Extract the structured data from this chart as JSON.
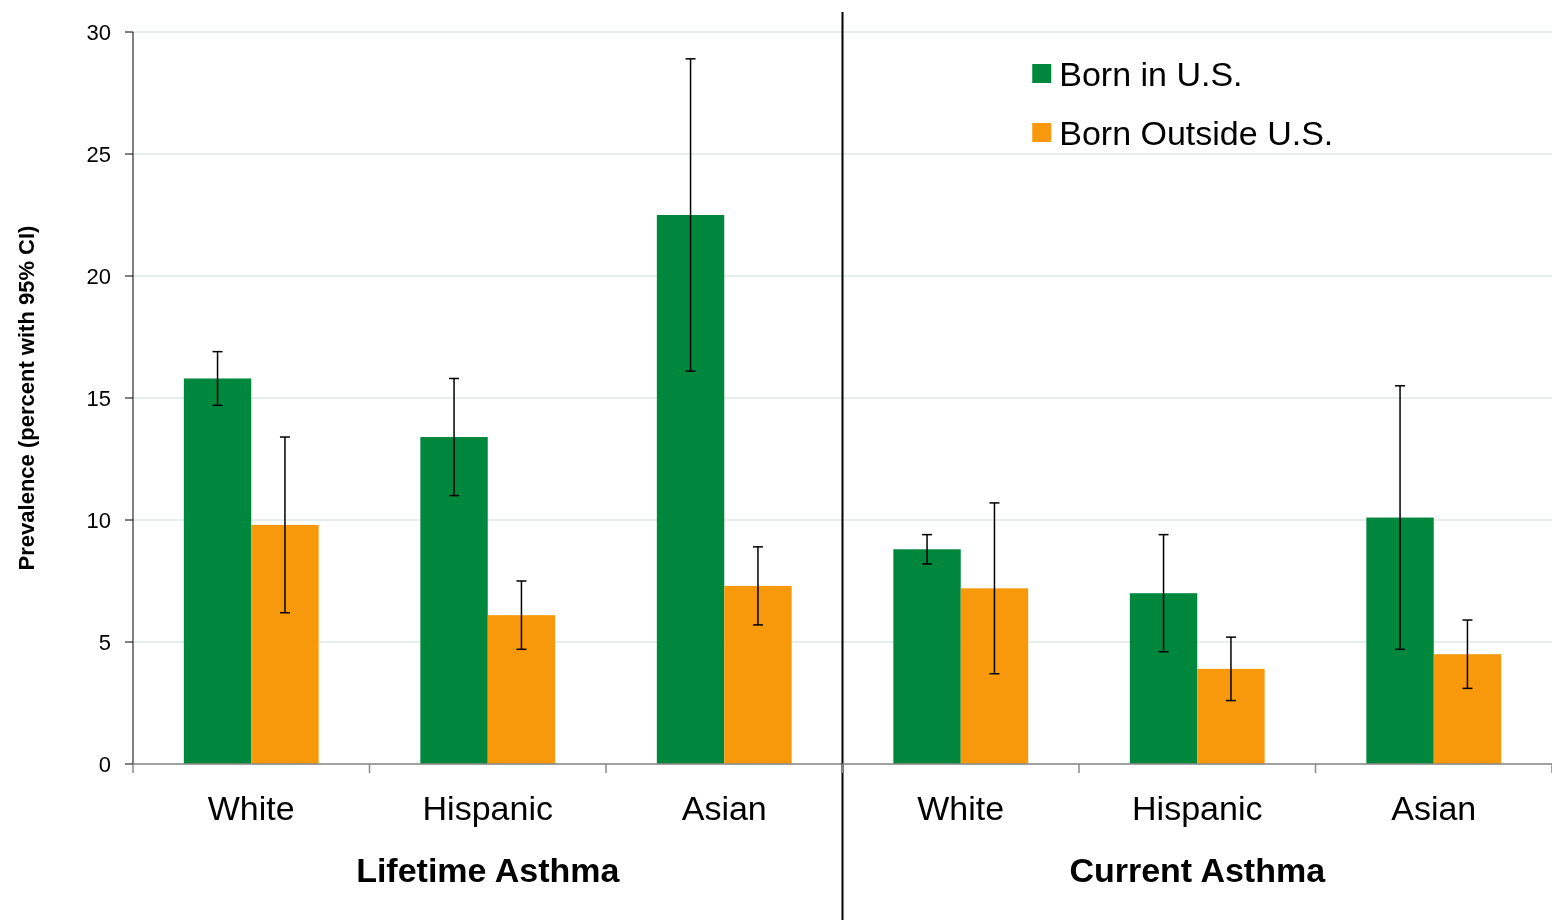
{
  "chart_data": [
    {
      "type": "bar",
      "xlabel": "Lifetime Asthma",
      "ylabel": "Prevalence (percent with 95% CI)",
      "categories": [
        "White",
        "Hispanic",
        "Asian"
      ],
      "ylim": [
        0,
        30
      ],
      "yticks": [
        0,
        5,
        10,
        15,
        20,
        25,
        30
      ],
      "grid": "y",
      "legend": false,
      "series": [
        {
          "color": "#00873e",
          "values": [
            15.8,
            13.4,
            22.5
          ],
          "errors": [
            [
              14.7,
              16.9
            ],
            [
              11.0,
              15.8
            ],
            [
              16.1,
              28.9
            ]
          ]
        },
        {
          "color": "#f8990b",
          "values": [
            9.8,
            6.1,
            7.3
          ],
          "errors": [
            [
              6.2,
              13.4
            ],
            [
              4.7,
              7.5
            ],
            [
              5.7,
              8.9
            ]
          ]
        }
      ]
    },
    {
      "type": "bar",
      "xlabel": "Current Asthma",
      "categories": [
        "White",
        "Hispanic",
        "Asian"
      ],
      "ylim": [
        0,
        30
      ],
      "yticks": [
        0,
        5,
        10,
        15,
        20,
        25,
        30
      ],
      "grid": "y",
      "legend": "top",
      "tick_labels": "x",
      "series": [
        {
          "name": "Born in U.S.",
          "color": "#00873e",
          "values": [
            8.8,
            7.0,
            10.1
          ],
          "errors": [
            [
              8.2,
              9.4
            ],
            [
              4.6,
              9.4
            ],
            [
              4.7,
              15.5
            ]
          ]
        },
        {
          "name": "Born Outside U.S.",
          "color": "#f8990b",
          "values": [
            7.2,
            3.9,
            4.5
          ],
          "errors": [
            [
              3.7,
              10.7
            ],
            [
              2.6,
              5.2
            ],
            [
              3.1,
              5.9
            ]
          ]
        }
      ]
    }
  ]
}
